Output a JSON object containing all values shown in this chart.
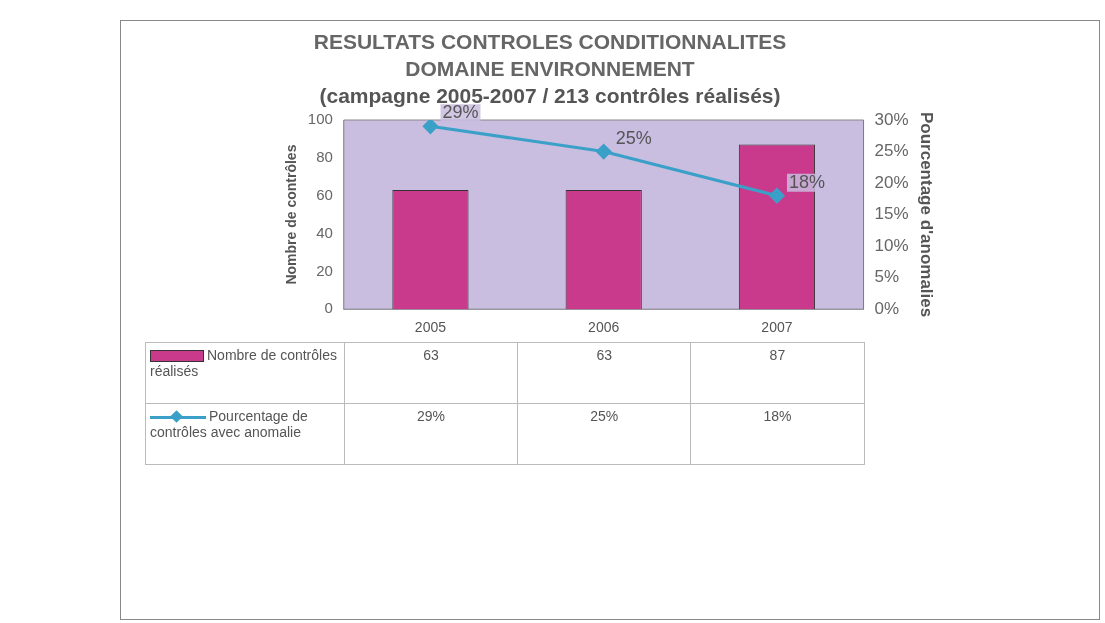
{
  "chart_data": {
    "type": "bar",
    "title": "RESULTATS CONTROLES CONDITIONNALITES\nDOMAINE ENVIRONNEMENT",
    "subtitle": "(campagne 2005-2007 / 213 contrôles réalisés)",
    "ylabel": "Nombre de contrôles",
    "y2label": "Pourcentage d'anomalies",
    "categories": [
      "2005",
      "2006",
      "2007"
    ],
    "series": [
      {
        "name": "Nombre de contrôles réalisés",
        "color": "#c93a8c",
        "values": [
          63,
          63,
          87
        ],
        "value_labels": [
          "63",
          "63",
          "87"
        ]
      },
      {
        "name": "Pourcentage de contrôles avec anomalie",
        "type": "line",
        "axis": "y2",
        "color": "#3aa0c8",
        "values": [
          29,
          25,
          18
        ],
        "value_labels": [
          "29%",
          "25%",
          "18%"
        ]
      }
    ],
    "ylim": [
      0,
      100
    ],
    "yticks": [
      0,
      20,
      40,
      60,
      80,
      100
    ],
    "y2lim": [
      0,
      30
    ],
    "y2ticks": [
      {
        "value": 0,
        "label": "0%"
      },
      {
        "value": 5,
        "label": "5%"
      },
      {
        "value": 10,
        "label": "10%"
      },
      {
        "value": 15,
        "label": "15%"
      },
      {
        "value": 20,
        "label": "20%"
      },
      {
        "value": 25,
        "label": "25%"
      },
      {
        "value": 30,
        "label": "30%"
      }
    ],
    "grid": false,
    "legend": "bottom left",
    "marker": "diamond",
    "line_style": "solid"
  }
}
